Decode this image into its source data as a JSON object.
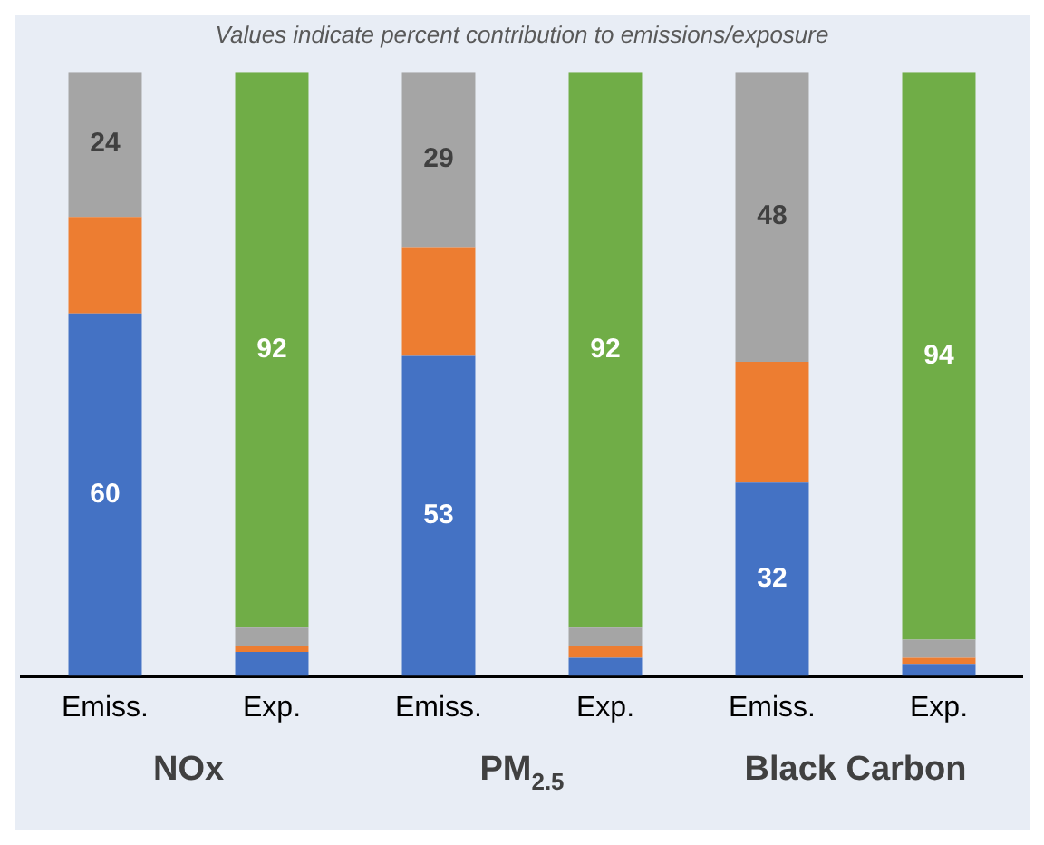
{
  "chart_data": {
    "type": "bar",
    "title": "Values indicate percent contribution to emissions/exposure",
    "categories": [
      "Emiss.",
      "Exp.",
      "Emiss.",
      "Exp.",
      "Emiss.",
      "Exp."
    ],
    "stacked": true,
    "ylim": [
      0,
      100
    ],
    "tick_labels": "x",
    "grid": false,
    "legend": false,
    "series": [
      {
        "color": "#4472c4",
        "values": [
          60,
          4,
          53,
          3,
          32,
          2
        ],
        "value_labels": [
          "60",
          null,
          "53",
          null,
          "32",
          null
        ]
      },
      {
        "color": "#ed7d31",
        "values": [
          16,
          1,
          18,
          2,
          20,
          1
        ]
      },
      {
        "color": "#a5a5a5",
        "values": [
          24,
          3,
          29,
          3,
          48,
          3
        ],
        "value_labels": [
          "24",
          null,
          "29",
          null,
          "48",
          null
        ]
      },
      {
        "color": "#70ad47",
        "values": [
          null,
          92,
          null,
          92,
          null,
          94
        ],
        "value_labels": [
          null,
          "92",
          null,
          "92",
          null,
          "94"
        ]
      }
    ],
    "annotations": [
      "NOx",
      "PM$_{2.5}$",
      "Black Carbon"
    ]
  }
}
